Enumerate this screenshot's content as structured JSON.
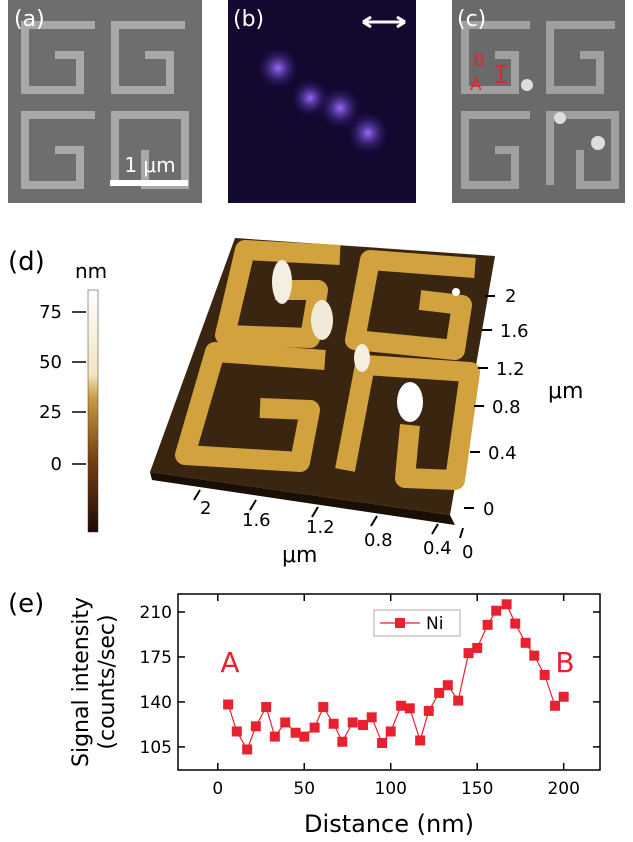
{
  "panels": {
    "a": {
      "label": "(a)",
      "scale": "1 μm"
    },
    "b": {
      "label": "(b)"
    },
    "c": {
      "label": "(c)",
      "markers": [
        "B",
        "A"
      ]
    },
    "d": {
      "label": "(d)",
      "colorbar_unit": "nm",
      "colorbar_ticks": [
        "75",
        "50",
        "25",
        "0"
      ],
      "right_ticks": [
        "2",
        "1.6",
        "1.2",
        "0.8",
        "0.4",
        "0"
      ],
      "bottom_ticks": [
        "2",
        "1.6",
        "1.2",
        "0.8",
        "0.4",
        "0"
      ],
      "right_unit": "μm",
      "bottom_unit": "μm"
    },
    "e": {
      "label": "(e)"
    }
  },
  "chart_data": {
    "type": "line",
    "xlabel": "Distance (nm)",
    "ylabel_lines": [
      "Signal intensity",
      "(counts/sec)"
    ],
    "annotations": [
      "A",
      "B"
    ],
    "x": [
      6,
      11,
      17,
      22,
      28,
      33,
      39,
      45,
      50,
      56,
      61,
      67,
      72,
      78,
      84,
      89,
      95,
      100,
      106,
      111,
      117,
      122,
      128,
      133,
      139,
      145,
      150,
      156,
      161,
      167,
      172,
      178,
      183,
      189,
      195,
      200
    ],
    "series": [
      {
        "name": "Ni",
        "color": "#e8212e",
        "values": [
          138,
          117,
          103,
          121,
          136,
          113,
          124,
          116,
          113,
          120,
          136,
          123,
          109,
          124,
          122,
          128,
          108,
          117,
          137,
          135,
          110,
          133,
          147,
          153,
          141,
          178,
          182,
          200,
          211,
          216,
          201,
          186,
          176,
          161,
          137,
          144
        ]
      }
    ],
    "xlim": [
      -23,
      221
    ],
    "ylim": [
      87,
      224
    ],
    "xticks": [
      0,
      50,
      100,
      150,
      200
    ],
    "yticks": [
      105,
      140,
      175,
      210
    ]
  }
}
